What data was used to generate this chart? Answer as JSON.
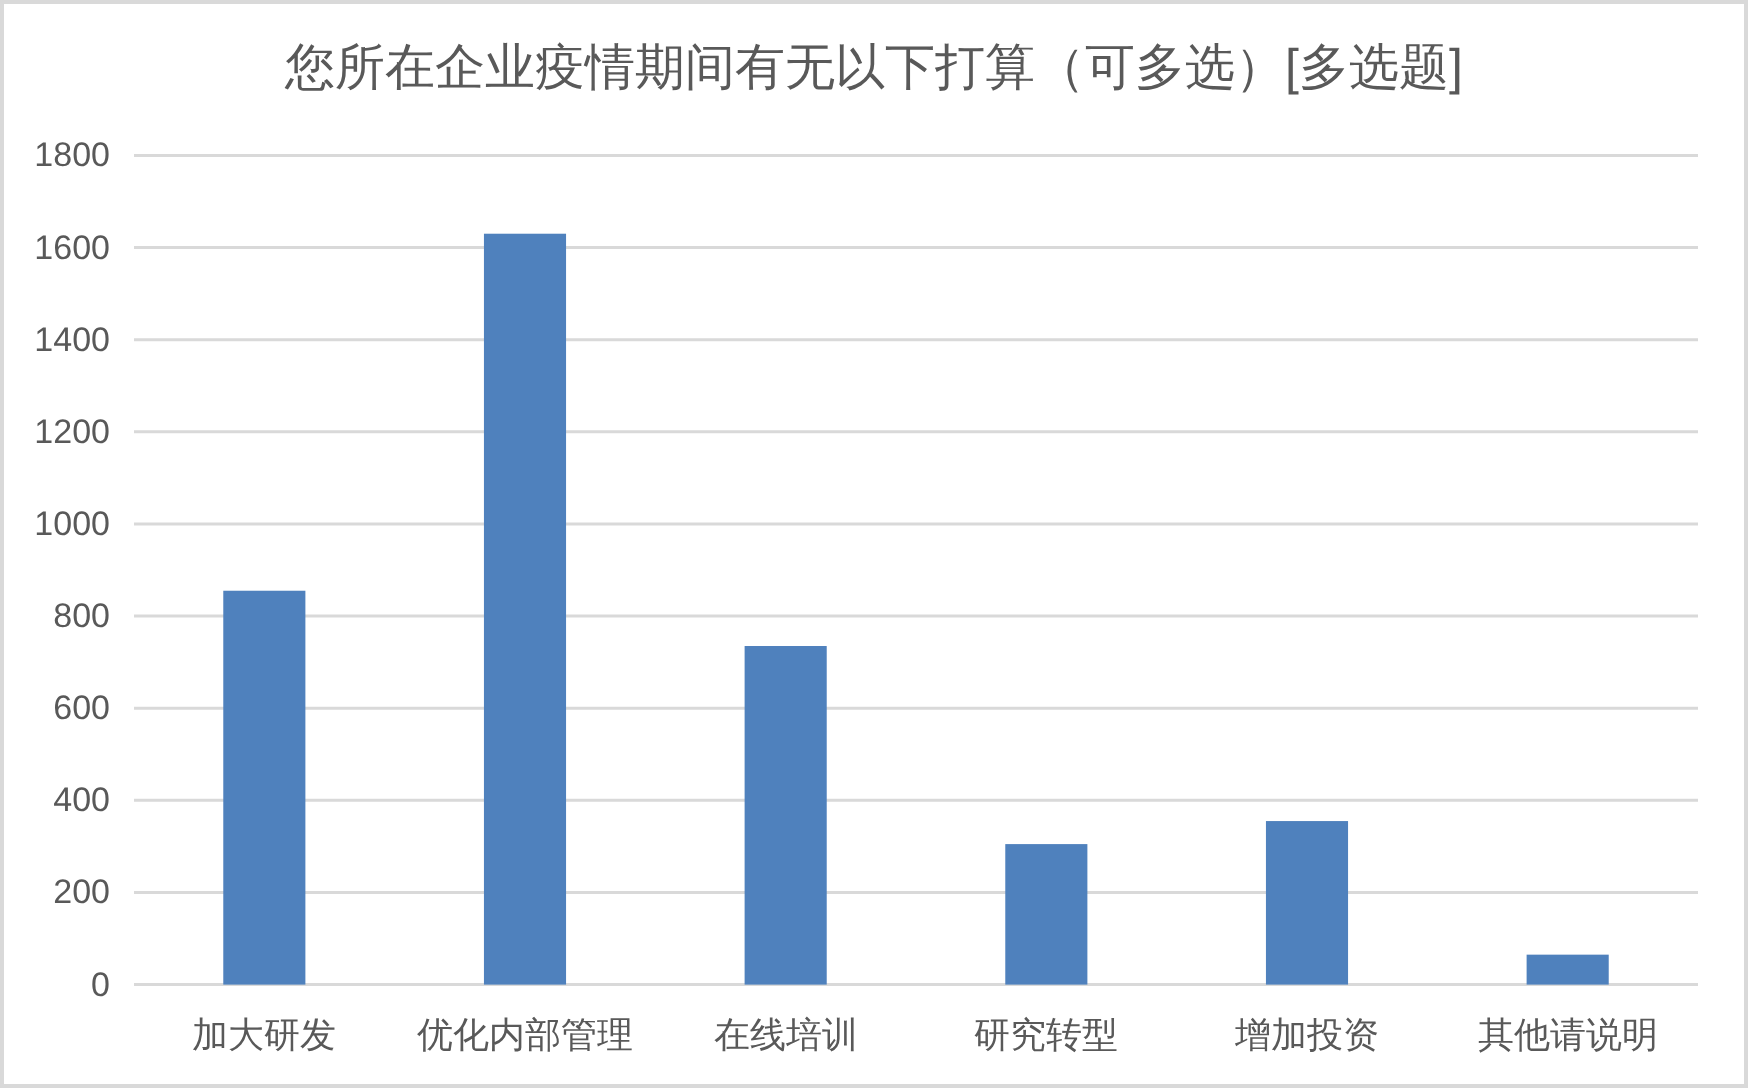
{
  "chart_data": {
    "type": "bar",
    "title": "您所在企业疫情期间有无以下打算（可多选）[多选题]",
    "categories": [
      "加大研发",
      "优化内部管理",
      "在线培训",
      "研究转型",
      "增加投资",
      "其他请说明"
    ],
    "values": [
      855,
      1630,
      735,
      305,
      355,
      65
    ],
    "color": "#4f81bd",
    "ylim": [
      0,
      1800
    ],
    "yticks": [
      0,
      200,
      400,
      600,
      800,
      1000,
      1200,
      1400,
      1600,
      1800
    ],
    "grid": "y"
  }
}
